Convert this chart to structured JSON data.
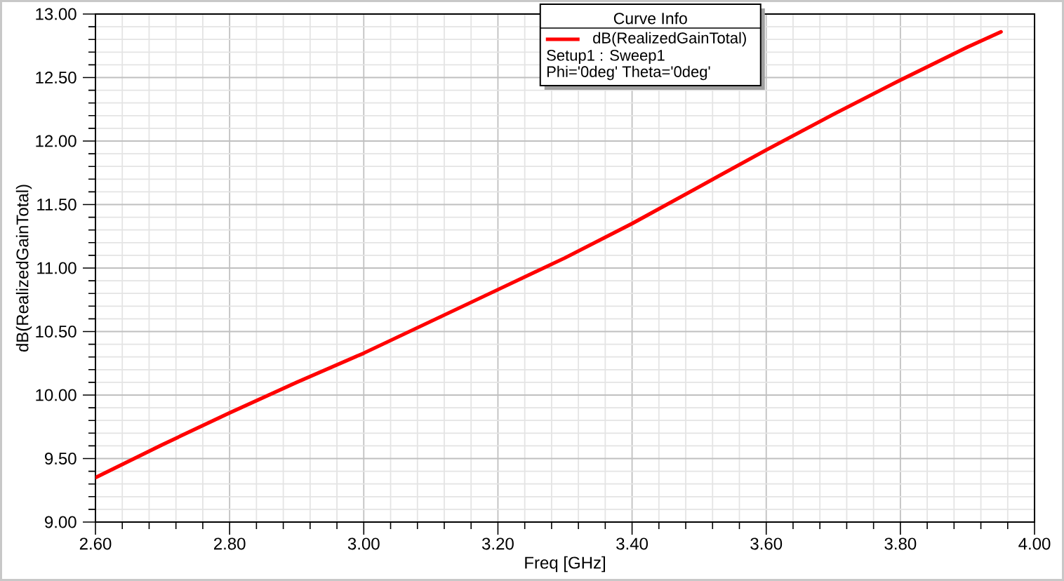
{
  "chart_data": {
    "type": "line",
    "xlabel": "Freq [GHz]",
    "ylabel": "dB(RealizedGainTotal)",
    "legend_title": "Curve Info",
    "annotations": [
      "Setup1 : Sweep1",
      "Phi='0deg' Theta='0deg'"
    ],
    "x": [
      2.6,
      2.7,
      2.8,
      2.9,
      3.0,
      3.1,
      3.2,
      3.3,
      3.4,
      3.5,
      3.6,
      3.7,
      3.8,
      3.9,
      3.95
    ],
    "series": [
      {
        "name": "dB(RealizedGainTotal)",
        "color": "#ff0000",
        "values": [
          9.35,
          9.61,
          9.86,
          10.1,
          10.33,
          10.58,
          10.83,
          11.08,
          11.35,
          11.64,
          11.93,
          12.21,
          12.48,
          12.74,
          12.86
        ]
      }
    ],
    "xlim": [
      2.6,
      4.0
    ],
    "ylim": [
      9,
      13
    ],
    "xticks": [
      {
        "value": 2.6,
        "label": "2.60"
      },
      {
        "value": 2.8,
        "label": "2.80"
      },
      {
        "value": 3.0,
        "label": "3.00"
      },
      {
        "value": 3.2,
        "label": "3.20"
      },
      {
        "value": 3.4,
        "label": "3.40"
      },
      {
        "value": 3.6,
        "label": "3.60"
      },
      {
        "value": 3.8,
        "label": "3.80"
      },
      {
        "value": 4.0,
        "label": "4.00"
      }
    ],
    "yticks": [
      {
        "value": 9,
        "label": "9.00"
      },
      {
        "value": 9.5,
        "label": "9.50"
      },
      {
        "value": 10,
        "label": "10.00"
      },
      {
        "value": 10.5,
        "label": "10.50"
      },
      {
        "value": 11,
        "label": "11.00"
      },
      {
        "value": 11.5,
        "label": "11.50"
      },
      {
        "value": 12,
        "label": "12.00"
      },
      {
        "value": 12.5,
        "label": "12.50"
      },
      {
        "value": 13,
        "label": "13.00"
      }
    ],
    "grid": true,
    "legend": "top",
    "marker": "none",
    "line_style": "solid"
  }
}
